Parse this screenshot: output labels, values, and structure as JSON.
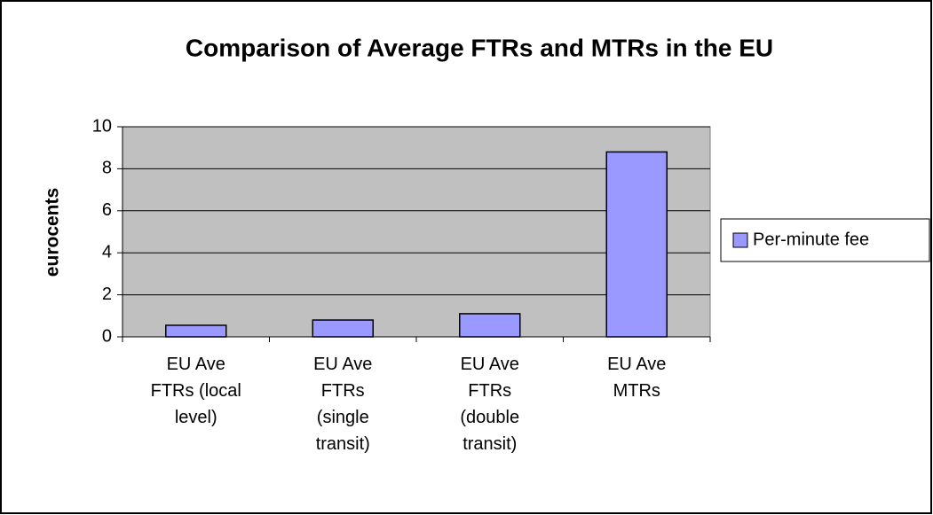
{
  "chart_data": {
    "type": "bar",
    "title": "Comparison of Average FTRs and MTRs in the EU",
    "y_label": "eurocents",
    "categories": [
      "EU Ave FTRs (local level)",
      "EU Ave FTRs (single transit)",
      "EU Ave FTRs (double transit)",
      "EU Ave MTRs"
    ],
    "series": [
      {
        "name": "Per-minute fee",
        "color": "#9999ff",
        "values": [
          0.55,
          0.8,
          1.1,
          8.8
        ]
      }
    ],
    "ylim": [
      0,
      10
    ],
    "yticks": [
      0,
      2,
      4,
      6,
      8,
      10
    ],
    "grid": true,
    "legend": "right"
  }
}
